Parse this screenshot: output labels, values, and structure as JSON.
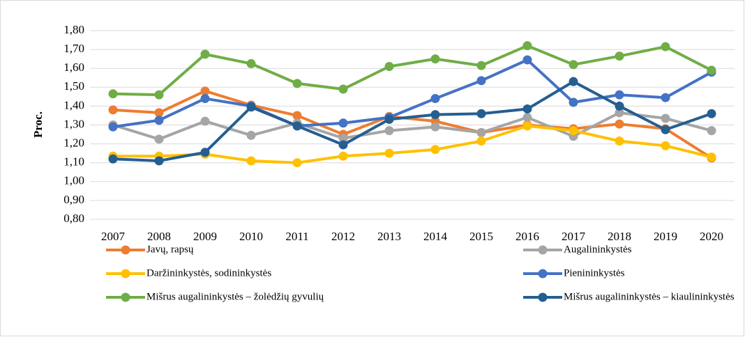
{
  "chart_data": {
    "type": "line",
    "y_label": "Proc.",
    "categories": [
      "2007",
      "2008",
      "2009",
      "2010",
      "2011",
      "2012",
      "2013",
      "2014",
      "2015",
      "2016",
      "2017",
      "2018",
      "2019",
      "2020"
    ],
    "ylim": [
      0.8,
      1.8
    ],
    "yticks": [
      {
        "value": 0.8,
        "label": "0,80"
      },
      {
        "value": 0.9,
        "label": "0,90"
      },
      {
        "value": 1.0,
        "label": "1,00"
      },
      {
        "value": 1.1,
        "label": "1,10"
      },
      {
        "value": 1.2,
        "label": "1,20"
      },
      {
        "value": 1.3,
        "label": "1,30"
      },
      {
        "value": 1.4,
        "label": "1,40"
      },
      {
        "value": 1.5,
        "label": "1,50"
      },
      {
        "value": 1.6,
        "label": "1,60"
      },
      {
        "value": 1.7,
        "label": "1,70"
      },
      {
        "value": 1.8,
        "label": "1,80"
      }
    ],
    "grid": true,
    "legend": "bottom",
    "series": [
      {
        "name": "Javų, rapsų",
        "color": "#ed7d31",
        "values": [
          1.38,
          1.365,
          1.48,
          1.405,
          1.35,
          1.25,
          1.345,
          1.32,
          1.26,
          1.3,
          1.28,
          1.305,
          1.28,
          1.125
        ]
      },
      {
        "name": "Augalininkystės",
        "color": "#a5a5a5",
        "values": [
          1.3,
          1.225,
          1.32,
          1.245,
          1.31,
          1.23,
          1.27,
          1.29,
          1.26,
          1.34,
          1.24,
          1.365,
          1.335,
          1.27
        ]
      },
      {
        "name": "Daržininkystės, sodininkystės",
        "color": "#ffc000",
        "values": [
          1.135,
          1.135,
          1.145,
          1.11,
          1.1,
          1.135,
          1.15,
          1.17,
          1.215,
          1.295,
          1.27,
          1.215,
          1.19,
          1.13
        ]
      },
      {
        "name": "Pienininkystės",
        "color": "#4472c4",
        "values": [
          1.29,
          1.325,
          1.44,
          1.4,
          1.295,
          1.31,
          1.34,
          1.44,
          1.535,
          1.645,
          1.42,
          1.46,
          1.445,
          1.58
        ]
      },
      {
        "name": "Mišrus augalininkystės – žolėdžių gyvulių",
        "color": "#70ad47",
        "values": [
          1.465,
          1.46,
          1.675,
          1.625,
          1.52,
          1.49,
          1.61,
          1.65,
          1.615,
          1.72,
          1.62,
          1.665,
          1.715,
          1.59
        ]
      },
      {
        "name": "Mišrus augalininkystės – kiaulininkystės",
        "color": "#255e91",
        "values": [
          1.12,
          1.11,
          1.155,
          1.395,
          1.295,
          1.195,
          1.33,
          1.355,
          1.36,
          1.385,
          1.53,
          1.4,
          1.275,
          1.36
        ]
      }
    ]
  }
}
